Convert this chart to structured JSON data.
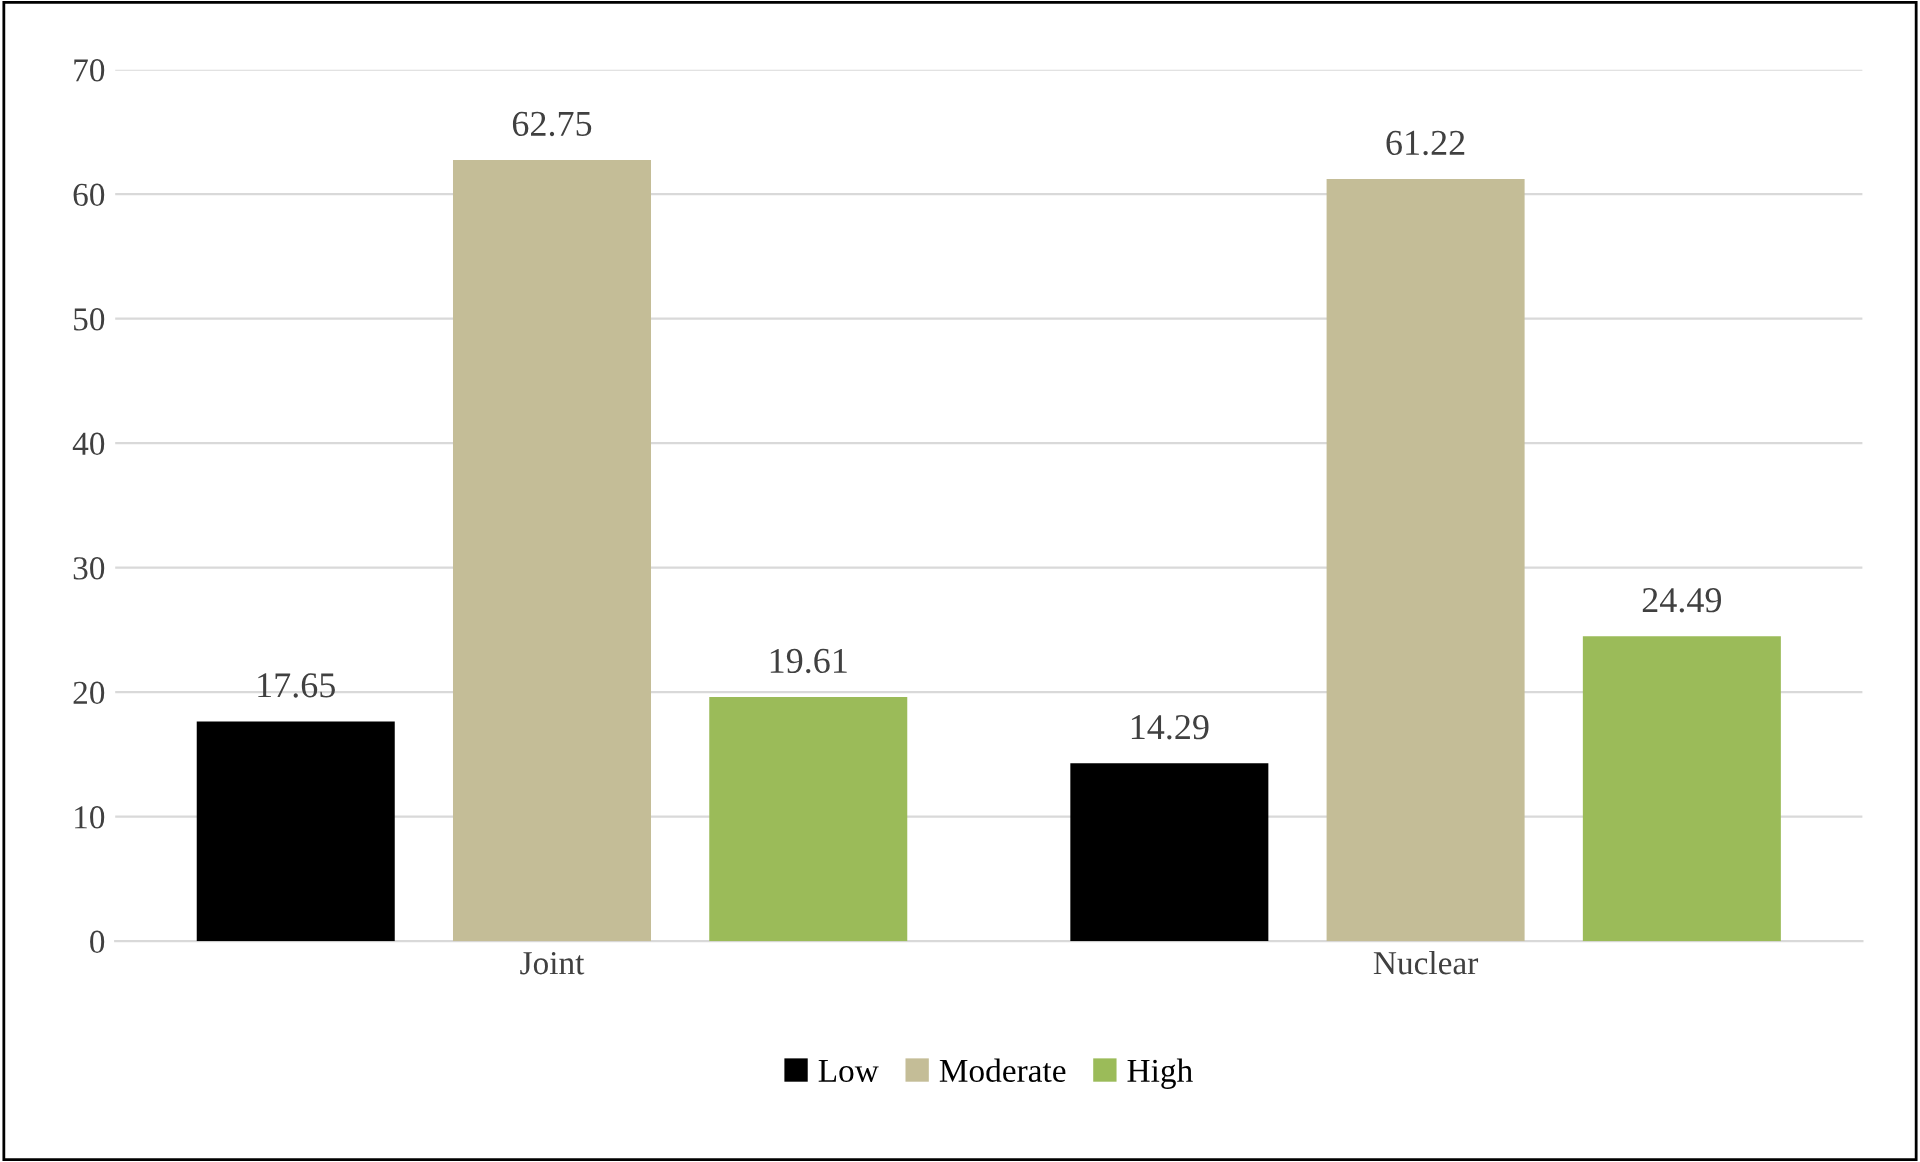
{
  "chart_data": {
    "type": "bar",
    "categories": [
      "Joint",
      "Nuclear"
    ],
    "series": [
      {
        "name": "Low",
        "color": "#000000",
        "values": [
          17.65,
          14.29
        ]
      },
      {
        "name": "Moderate",
        "color": "#c4bd97",
        "values": [
          62.75,
          61.22
        ]
      },
      {
        "name": "High",
        "color": "#9bbb59",
        "values": [
          19.61,
          24.49
        ]
      }
    ],
    "ylim": [
      0,
      70
    ],
    "yticks": [
      0,
      10,
      20,
      30,
      40,
      50,
      60,
      70
    ],
    "grid": "y",
    "legend": "bottom",
    "data_labels": true
  }
}
